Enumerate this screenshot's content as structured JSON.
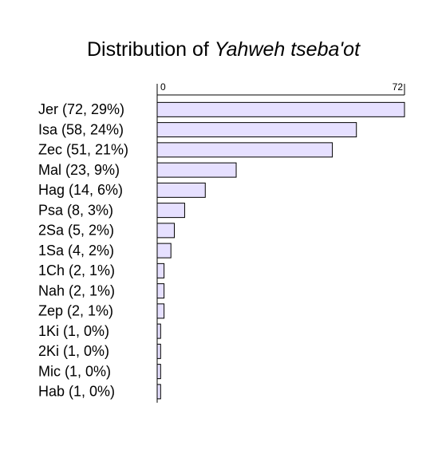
{
  "chart_data": {
    "type": "bar",
    "orientation": "horizontal",
    "title_parts": [
      "Distribution of",
      "Yahweh tseba'ot"
    ],
    "categories": [
      "Jer (72, 29%)",
      "Isa (58, 24%)",
      "Zec (51, 21%)",
      "Mal (23, 9%)",
      "Hag (14, 6%)",
      "Psa (8, 3%)",
      "2Sa (5, 2%)",
      "1Sa (4, 2%)",
      "1Ch (2, 1%)",
      "Nah (2, 1%)",
      "Zep (2, 1%)",
      "1Ki (1, 0%)",
      "2Ki (1, 0%)",
      "Mic (1, 0%)",
      "Hab (1, 0%)"
    ],
    "values": [
      72,
      58,
      51,
      23,
      14,
      8,
      5,
      4,
      2,
      2,
      2,
      1,
      1,
      1,
      1
    ],
    "color": "#e6e0ff",
    "xlim": [
      0,
      72
    ],
    "xticks": [
      0,
      72
    ],
    "grid": false
  }
}
